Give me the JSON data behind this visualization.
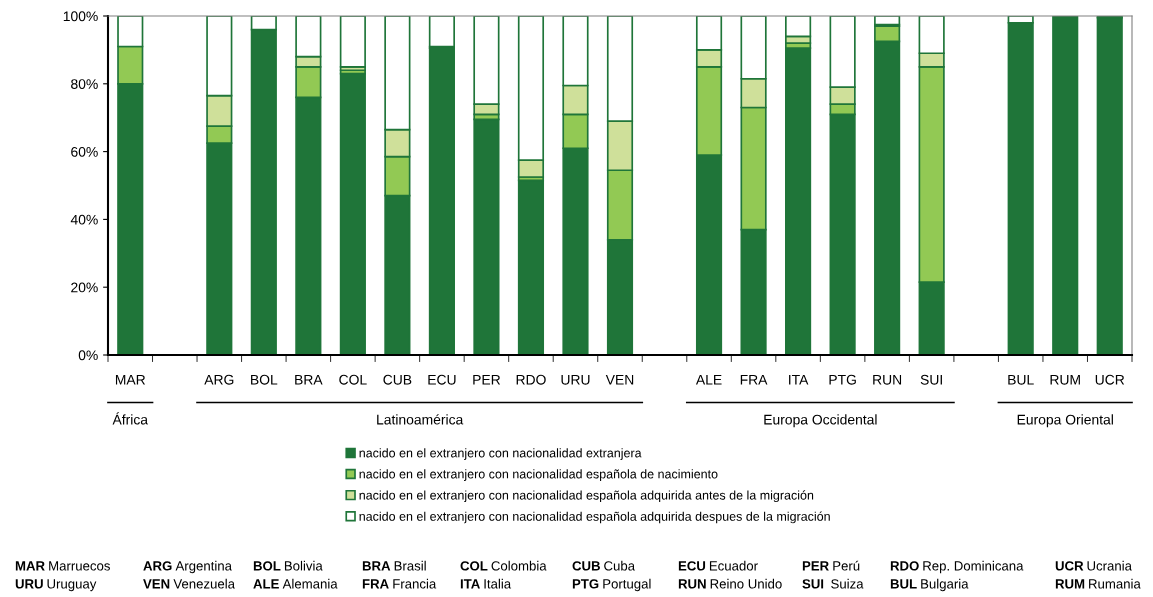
{
  "chart_data": {
    "type": "bar",
    "stacked": true,
    "categories": [
      "MAR",
      null,
      "ARG",
      "BOL",
      "BRA",
      "COL",
      "CUB",
      "ECU",
      "PER",
      "RDO",
      "URU",
      "VEN",
      null,
      "ALE",
      "FRA",
      "ITA",
      "PTG",
      "RUN",
      "SUI",
      null,
      "BUL",
      "RUM",
      "UCR"
    ],
    "series": [
      {
        "name": "nacido en el extranjero con nacionalidad extranjera",
        "color": "#1f7539",
        "values": [
          80,
          null,
          62.5,
          96,
          76,
          83,
          47,
          90.5,
          69.5,
          51.5,
          61,
          34,
          null,
          59,
          37,
          90.5,
          71,
          92.5,
          21.5,
          null,
          98,
          100,
          99.5
        ]
      },
      {
        "name": "nacido en el extranjero con nacionalidad española de nacimiento",
        "color": "#92c954",
        "values": [
          11,
          null,
          5,
          0,
          9,
          1,
          11.5,
          0.5,
          1.5,
          1,
          10,
          20.5,
          null,
          26,
          36,
          1.5,
          3,
          4.5,
          63.5,
          null,
          0,
          0,
          0
        ]
      },
      {
        "name": "nacido en el extranjero con nacionalidad española adquirida antes de la migración",
        "color": "#cfe09a",
        "values": [
          null,
          null,
          9,
          0,
          3,
          1,
          8,
          null,
          3,
          5,
          8.5,
          14.5,
          null,
          5,
          8.5,
          2,
          5,
          0.5,
          4,
          null,
          0,
          0,
          0
        ]
      },
      {
        "name": "nacido en el extranjero con nacionalidad española adquirida despues de la migración",
        "color": "#ffffff",
        "values": [
          9,
          null,
          23.5,
          4,
          12,
          15,
          33.5,
          9,
          26,
          42.5,
          20.5,
          31,
          null,
          10,
          18.5,
          6,
          21,
          2.5,
          11,
          null,
          2,
          0,
          0.5
        ]
      }
    ],
    "ylim": [
      0,
      100
    ],
    "yticks": [
      {
        "value": 0,
        "label": "0%"
      },
      {
        "value": 20,
        "label": "20%"
      },
      {
        "value": 40,
        "label": "40%"
      },
      {
        "value": 60,
        "label": "60%"
      },
      {
        "value": 80,
        "label": "80%"
      },
      {
        "value": 100,
        "label": "100%"
      }
    ],
    "grid": false,
    "legend": "bottom",
    "annotations": [
      "África",
      "Latinoamérica",
      "Europa Occidental",
      "Europa Oriental",
      "MAR Marruecos",
      "ARG Argentina",
      "BOL Bolivia",
      "BRA Brasil",
      "COL Colombia",
      "CUB Cuba",
      "ECU Ecuador",
      "PER Perú",
      "RDO Rep. Dominicana",
      "UCR Ucrania",
      "URU Uruguay",
      "VEN Venezuela",
      "ALE Alemania",
      "FRA Francia",
      "ITA Italia",
      "PTG Portugal",
      "RUN Reino Unido",
      "SUI  Suiza",
      "BUL Bulgaria",
      "RUM Rumania"
    ]
  }
}
